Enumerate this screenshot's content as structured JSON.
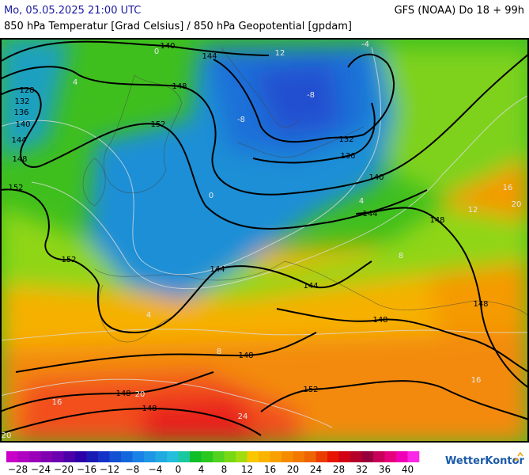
{
  "header": {
    "datetime": "Mo, 05.05.2025 21:00 UTC",
    "model": "GFS (NOAA) Do 18 + 99h",
    "title": "850 hPa Temperatur [Grad Celsius] / 850 hPa Geopotential [gpdam]"
  },
  "contour_labels": [
    140,
    144,
    148,
    128,
    132,
    136,
    140,
    144,
    148,
    152,
    152,
    152,
    132,
    136,
    140,
    144,
    148,
    144,
    144,
    148,
    148,
    148,
    148,
    148,
    152
  ],
  "temperature_labels": [
    12,
    -8,
    -8,
    -4,
    0,
    4,
    0,
    4,
    8,
    12,
    16,
    20,
    16,
    20,
    24,
    16,
    20,
    4,
    8
  ],
  "legend": {
    "labels": [
      "−28",
      "−24",
      "−20",
      "−16",
      "−12",
      "−8",
      "−4",
      "0",
      "4",
      "8",
      "12",
      "16",
      "20",
      "24",
      "28",
      "32",
      "36",
      "40"
    ],
    "colors": [
      "#c800c8",
      "#b000c0",
      "#9a00b8",
      "#8000b0",
      "#6a00b0",
      "#4b00a8",
      "#2c00a8",
      "#1a1ab4",
      "#1432c8",
      "#1450d2",
      "#1466dc",
      "#1a82e6",
      "#1e96e6",
      "#20aae0",
      "#22bedc",
      "#1ac8a0",
      "#10be28",
      "#28c81e",
      "#50d21e",
      "#78d814",
      "#a0dc10",
      "#fac800",
      "#fab400",
      "#f8a000",
      "#f58c00",
      "#f27800",
      "#ee6400",
      "#ea3c00",
      "#e61400",
      "#d20014",
      "#b4002a",
      "#96003c",
      "#c8005a",
      "#e6007d",
      "#f000b4",
      "#fa28e6"
    ]
  },
  "footer": {
    "brand": "WetterKontor"
  }
}
